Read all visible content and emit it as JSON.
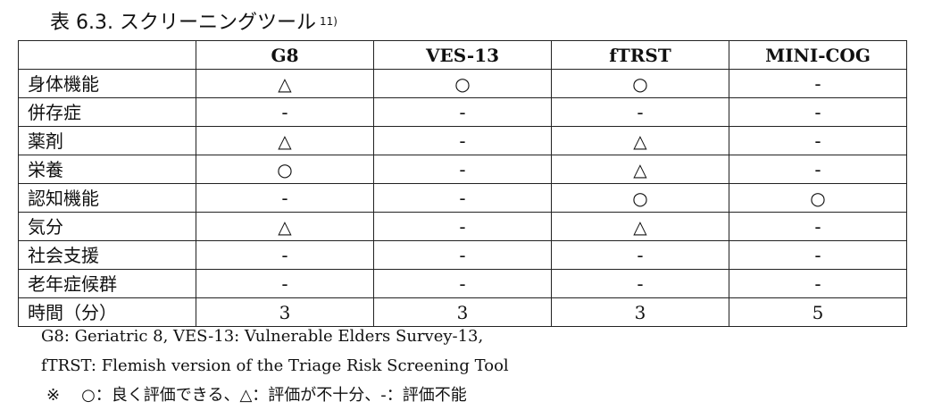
{
  "caption": {
    "title": "表 6.3. スクリーニングツール",
    "ref": "11)"
  },
  "table": {
    "headers": [
      "",
      "G8",
      "VES-13",
      "fTRST",
      "MINI-COG"
    ],
    "rows": [
      {
        "label": "身体機能",
        "cells": [
          "△",
          "○",
          "○",
          "-"
        ]
      },
      {
        "label": "併存症",
        "cells": [
          "-",
          "-",
          "-",
          "-"
        ]
      },
      {
        "label": "薬剤",
        "cells": [
          "△",
          "-",
          "△",
          "-"
        ]
      },
      {
        "label": "栄養",
        "cells": [
          "○",
          "-",
          "△",
          "-"
        ]
      },
      {
        "label": "認知機能",
        "cells": [
          "-",
          "-",
          "○",
          "○"
        ]
      },
      {
        "label": "気分",
        "cells": [
          "△",
          "-",
          "△",
          "-"
        ]
      },
      {
        "label": "社会支援",
        "cells": [
          "-",
          "-",
          "-",
          "-"
        ]
      },
      {
        "label": "老年症候群",
        "cells": [
          "-",
          "-",
          "-",
          "-"
        ]
      },
      {
        "label": "時間（分）",
        "cells": [
          "3",
          "3",
          "3",
          "5"
        ]
      }
    ]
  },
  "notes": {
    "line1": "G8: Geriatric 8, VES-13: Vulnerable Elders Survey-13,",
    "line2": "fTRST: Flemish version of the Triage Risk Screening Tool",
    "mark": "※",
    "legend": "○：良く評価できる、△：評価が不十分、-：評価不能"
  }
}
